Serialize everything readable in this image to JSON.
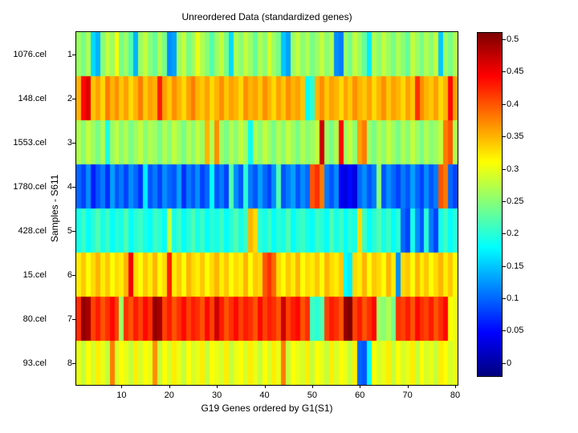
{
  "chart_data": {
    "type": "heatmap",
    "title": "Unreordered Data (standardized genes)",
    "xlabel": "G19 Genes ordered by G1(S1)",
    "ylabel": "Samples - S611",
    "colormap": "jet",
    "clim": [
      -0.02,
      0.51
    ],
    "n_cols": 80,
    "x_ticks": [
      10,
      20,
      30,
      40,
      50,
      60,
      70,
      80
    ],
    "row_ticks": [
      "1",
      "2",
      "3",
      "4",
      "5",
      "6",
      "7",
      "8"
    ],
    "row_labels": [
      "1076.cel",
      "148.cel",
      "1553.cel",
      "1780.cel",
      "428.cel",
      "15.cel",
      "80.cel",
      "93.cel"
    ],
    "colorbar_ticks": [
      "0",
      "0.05",
      "0.1",
      "0.15",
      "0.2",
      "0.25",
      "0.3",
      "0.35",
      "0.4",
      "0.45",
      "0.5"
    ],
    "values": [
      [
        0.26,
        0.24,
        0.27,
        0.16,
        0.14,
        0.25,
        0.28,
        0.26,
        0.31,
        0.24,
        0.26,
        0.22,
        0.14,
        0.26,
        0.28,
        0.25,
        0.23,
        0.27,
        0.24,
        0.12,
        0.13,
        0.26,
        0.28,
        0.24,
        0.26,
        0.3,
        0.27,
        0.25,
        0.22,
        0.26,
        0.28,
        0.24,
        0.16,
        0.27,
        0.25,
        0.28,
        0.26,
        0.23,
        0.27,
        0.25,
        0.29,
        0.26,
        0.24,
        0.15,
        0.13,
        0.26,
        0.28,
        0.25,
        0.27,
        0.24,
        0.26,
        0.28,
        0.25,
        0.27,
        0.12,
        0.11,
        0.26,
        0.24,
        0.28,
        0.26,
        0.23,
        0.17,
        0.27,
        0.25,
        0.28,
        0.26,
        0.24,
        0.27,
        0.25,
        0.23,
        0.28,
        0.26,
        0.24,
        0.27,
        0.25,
        0.28,
        0.15,
        0.26,
        0.24,
        0.27
      ],
      [
        0.35,
        0.44,
        0.46,
        0.34,
        0.36,
        0.33,
        0.38,
        0.35,
        0.37,
        0.34,
        0.36,
        0.33,
        0.35,
        0.38,
        0.34,
        0.36,
        0.35,
        0.43,
        0.36,
        0.34,
        0.37,
        0.35,
        0.33,
        0.36,
        0.38,
        0.35,
        0.34,
        0.36,
        0.33,
        0.35,
        0.37,
        0.34,
        0.36,
        0.35,
        0.33,
        0.37,
        0.35,
        0.36,
        0.34,
        0.37,
        0.35,
        0.33,
        0.36,
        0.34,
        0.37,
        0.35,
        0.36,
        0.34,
        0.18,
        0.2,
        0.35,
        0.37,
        0.34,
        0.36,
        0.35,
        0.33,
        0.36,
        0.34,
        0.37,
        0.35,
        0.34,
        0.36,
        0.33,
        0.35,
        0.37,
        0.34,
        0.36,
        0.35,
        0.33,
        0.36,
        0.34,
        0.42,
        0.37,
        0.35,
        0.34,
        0.36,
        0.33,
        0.35,
        0.44,
        0.36
      ],
      [
        0.27,
        0.25,
        0.28,
        0.26,
        0.24,
        0.27,
        0.19,
        0.26,
        0.28,
        0.25,
        0.27,
        0.24,
        0.26,
        0.28,
        0.25,
        0.27,
        0.26,
        0.24,
        0.27,
        0.25,
        0.28,
        0.26,
        0.24,
        0.27,
        0.25,
        0.28,
        0.26,
        0.35,
        0.27,
        0.37,
        0.26,
        0.24,
        0.27,
        0.25,
        0.28,
        0.26,
        0.18,
        0.27,
        0.25,
        0.28,
        0.26,
        0.24,
        0.27,
        0.25,
        0.28,
        0.26,
        0.24,
        0.27,
        0.25,
        0.26,
        0.28,
        0.47,
        0.26,
        0.24,
        0.27,
        0.44,
        0.26,
        0.28,
        0.25,
        0.36,
        0.38,
        0.26,
        0.24,
        0.27,
        0.25,
        0.28,
        0.26,
        0.24,
        0.27,
        0.25,
        0.28,
        0.26,
        0.24,
        0.27,
        0.25,
        0.26,
        0.28,
        0.38,
        0.4,
        0.27
      ],
      [
        0.1,
        0.08,
        0.12,
        0.06,
        0.09,
        0.11,
        0.07,
        0.13,
        0.09,
        0.11,
        0.08,
        0.12,
        0.1,
        0.07,
        0.17,
        0.09,
        0.11,
        0.08,
        0.12,
        0.1,
        0.09,
        0.13,
        0.07,
        0.11,
        0.09,
        0.12,
        0.08,
        0.1,
        0.18,
        0.09,
        0.11,
        0.08,
        0.22,
        0.12,
        0.09,
        0.2,
        0.11,
        0.09,
        0.13,
        0.1,
        0.08,
        0.12,
        0.22,
        0.09,
        0.11,
        0.13,
        0.09,
        0.12,
        0.1,
        0.4,
        0.42,
        0.38,
        0.11,
        0.09,
        0.12,
        0.04,
        0.03,
        0.05,
        0.03,
        0.1,
        0.12,
        0.09,
        0.11,
        0.25,
        0.09,
        0.12,
        0.1,
        0.08,
        0.11,
        0.09,
        0.13,
        0.1,
        0.08,
        0.12,
        0.09,
        0.11,
        0.4,
        0.38,
        0.1,
        0.08
      ],
      [
        0.19,
        0.21,
        0.18,
        0.2,
        0.22,
        0.19,
        0.21,
        0.18,
        0.2,
        0.19,
        0.22,
        0.18,
        0.2,
        0.21,
        0.19,
        0.18,
        0.21,
        0.2,
        0.18,
        0.28,
        0.19,
        0.21,
        0.18,
        0.2,
        0.22,
        0.19,
        0.21,
        0.18,
        0.2,
        0.19,
        0.21,
        0.18,
        0.2,
        0.22,
        0.19,
        0.21,
        0.35,
        0.33,
        0.2,
        0.19,
        0.21,
        0.18,
        0.2,
        0.19,
        0.22,
        0.18,
        0.2,
        0.21,
        0.19,
        0.18,
        0.21,
        0.2,
        0.18,
        0.22,
        0.19,
        0.21,
        0.18,
        0.2,
        0.19,
        0.33,
        0.21,
        0.18,
        0.2,
        0.22,
        0.19,
        0.21,
        0.18,
        0.2,
        0.1,
        0.08,
        0.19,
        0.12,
        0.09,
        0.2,
        0.11,
        0.08,
        0.19,
        0.21,
        0.18,
        0.2
      ],
      [
        0.32,
        0.34,
        0.31,
        0.33,
        0.35,
        0.32,
        0.34,
        0.31,
        0.33,
        0.32,
        0.35,
        0.45,
        0.33,
        0.31,
        0.34,
        0.32,
        0.35,
        0.31,
        0.33,
        0.43,
        0.32,
        0.34,
        0.31,
        0.35,
        0.33,
        0.32,
        0.34,
        0.31,
        0.33,
        0.35,
        0.32,
        0.34,
        0.31,
        0.33,
        0.32,
        0.35,
        0.31,
        0.34,
        0.33,
        0.4,
        0.42,
        0.39,
        0.33,
        0.31,
        0.34,
        0.32,
        0.35,
        0.31,
        0.33,
        0.32,
        0.34,
        0.31,
        0.35,
        0.33,
        0.32,
        0.34,
        0.18,
        0.17,
        0.33,
        0.32,
        0.35,
        0.31,
        0.34,
        0.33,
        0.31,
        0.35,
        0.32,
        0.12,
        0.33,
        0.34,
        0.31,
        0.35,
        0.32,
        0.34,
        0.31,
        0.33,
        0.35,
        0.32,
        0.34,
        0.31
      ],
      [
        0.42,
        0.5,
        0.49,
        0.41,
        0.43,
        0.4,
        0.42,
        0.44,
        0.41,
        0.26,
        0.42,
        0.4,
        0.43,
        0.41,
        0.44,
        0.42,
        0.5,
        0.49,
        0.41,
        0.43,
        0.4,
        0.42,
        0.44,
        0.41,
        0.43,
        0.42,
        0.4,
        0.44,
        0.41,
        0.47,
        0.43,
        0.4,
        0.42,
        0.44,
        0.41,
        0.43,
        0.42,
        0.4,
        0.44,
        0.41,
        0.43,
        0.42,
        0.4,
        0.47,
        0.41,
        0.43,
        0.44,
        0.4,
        0.42,
        0.21,
        0.2,
        0.22,
        0.41,
        0.43,
        0.42,
        0.4,
        0.5,
        0.51,
        0.41,
        0.43,
        0.4,
        0.42,
        0.44,
        0.26,
        0.25,
        0.27,
        0.24,
        0.42,
        0.41,
        0.43,
        0.4,
        0.44,
        0.42,
        0.41,
        0.43,
        0.4,
        0.42,
        0.44,
        0.31,
        0.3
      ],
      [
        0.3,
        0.28,
        0.31,
        0.29,
        0.32,
        0.3,
        0.28,
        0.38,
        0.29,
        0.31,
        0.3,
        0.28,
        0.32,
        0.29,
        0.31,
        0.3,
        0.37,
        0.28,
        0.31,
        0.29,
        0.32,
        0.3,
        0.28,
        0.31,
        0.29,
        0.3,
        0.32,
        0.28,
        0.31,
        0.3,
        0.29,
        0.32,
        0.28,
        0.3,
        0.31,
        0.29,
        0.32,
        0.3,
        0.28,
        0.31,
        0.29,
        0.32,
        0.3,
        0.38,
        0.28,
        0.31,
        0.3,
        0.29,
        0.32,
        0.28,
        0.31,
        0.3,
        0.28,
        0.32,
        0.29,
        0.31,
        0.3,
        0.28,
        0.32,
        0.1,
        0.09,
        0.18,
        0.31,
        0.29,
        0.3,
        0.32,
        0.28,
        0.31,
        0.29,
        0.3,
        0.32,
        0.28,
        0.31,
        0.29,
        0.3,
        0.28,
        0.32,
        0.31,
        0.29,
        0.3
      ]
    ]
  }
}
